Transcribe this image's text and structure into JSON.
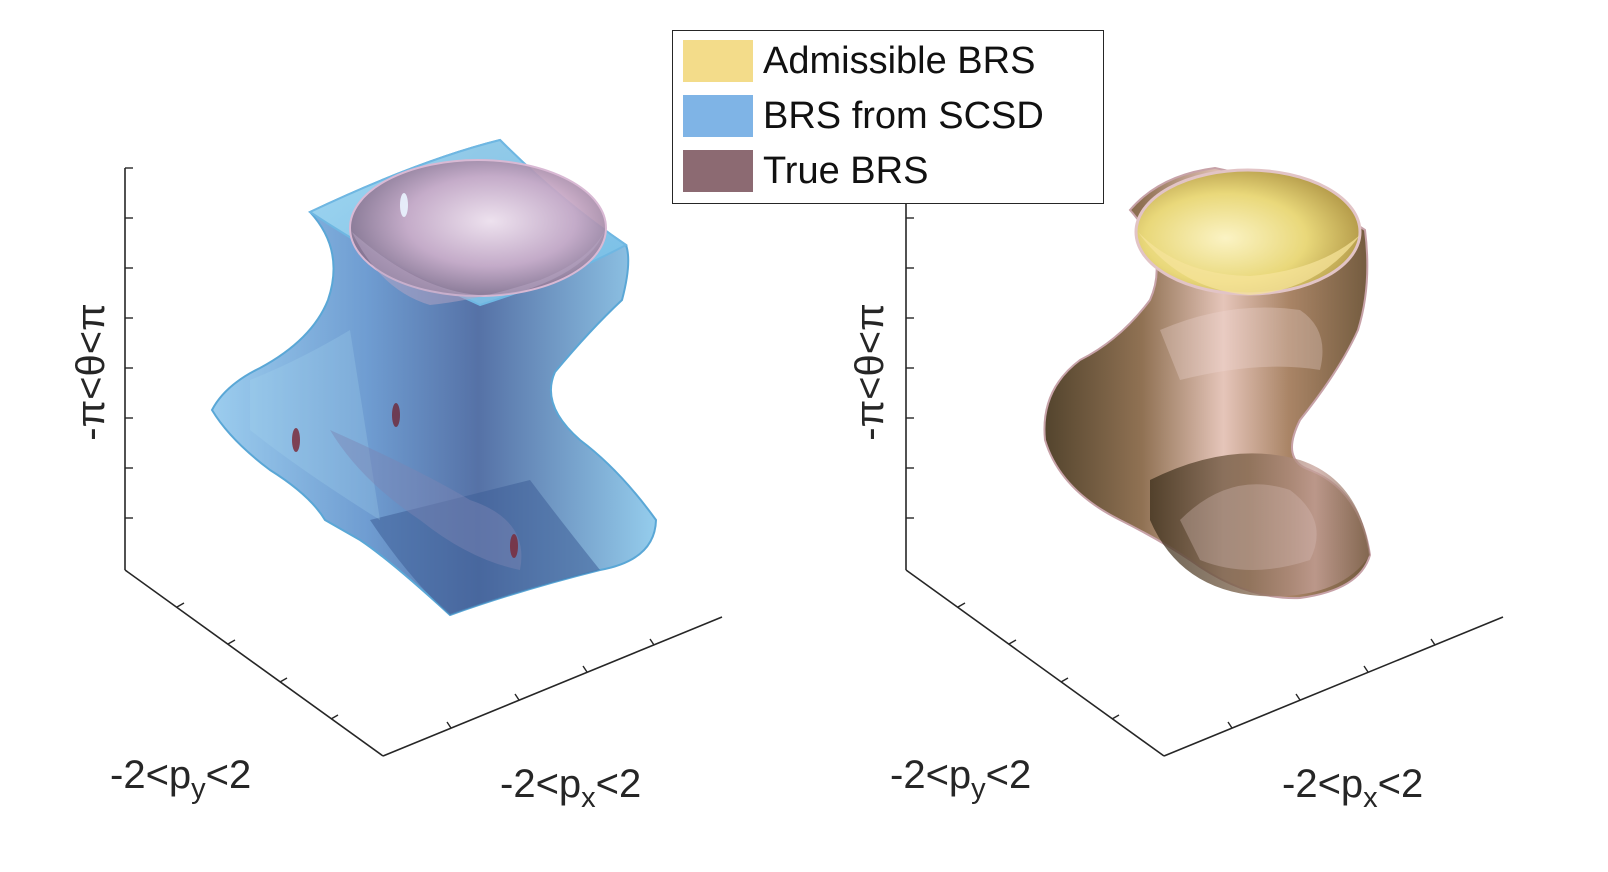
{
  "chart_data": {
    "type": "3d-surface",
    "legend": {
      "placement": "top-center",
      "entries": [
        {
          "label": "Admissible BRS",
          "color": "#f3dc8a"
        },
        {
          "label": "BRS from SCSD",
          "color": "#7fb4e6"
        },
        {
          "label": "True BRS",
          "color": "#8c6a72"
        }
      ]
    },
    "panels": [
      {
        "shows": [
          "BRS from SCSD",
          "True BRS"
        ],
        "xlabel": {
          "base": "-2<p",
          "sub": "x",
          "tail": "<2"
        },
        "ylabel": {
          "base": "-2<p",
          "sub": "y",
          "tail": "<2"
        },
        "zlabel": "-π<θ<π",
        "xlim": [
          -2,
          2
        ],
        "ylim": [
          -2,
          2
        ],
        "zlim": [
          "-π",
          "π"
        ],
        "grid": false
      },
      {
        "shows": [
          "Admissible BRS",
          "True BRS"
        ],
        "xlabel": {
          "base": "-2<p",
          "sub": "x",
          "tail": "<2"
        },
        "ylabel": {
          "base": "-2<p",
          "sub": "y",
          "tail": "<2"
        },
        "zlabel": "-π<θ<π",
        "xlim": [
          -2,
          2
        ],
        "ylim": [
          -2,
          2
        ],
        "zlim": [
          "-π",
          "π"
        ],
        "grid": false
      }
    ]
  }
}
